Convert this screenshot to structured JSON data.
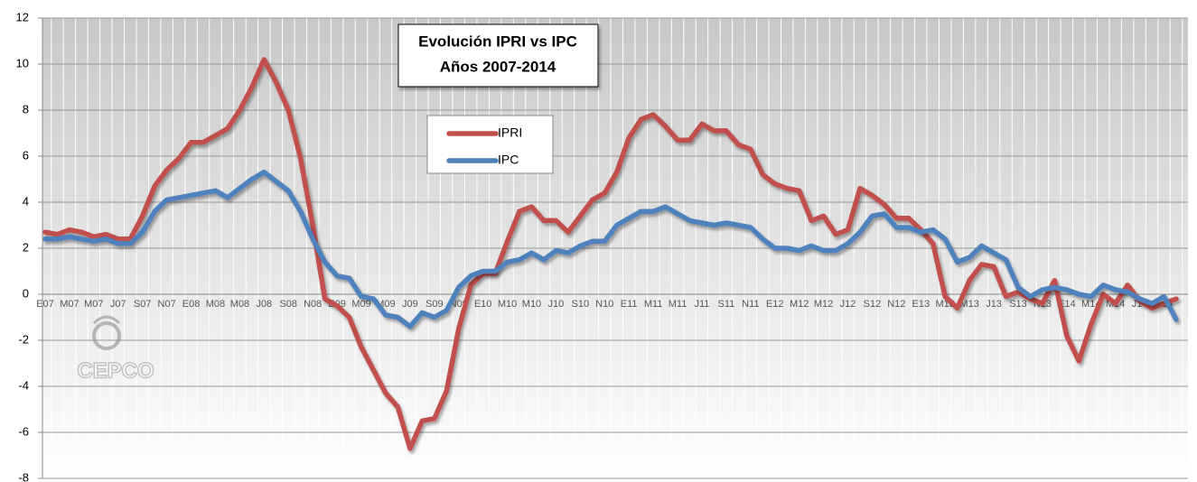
{
  "chart_data": {
    "type": "line",
    "title": "Evolución IPRI vs IPC",
    "subtitle": "Años 2007-2014",
    "watermark": "CEPCO",
    "categories": [
      "E07",
      null,
      "M07",
      null,
      "M07",
      null,
      "J07",
      null,
      "S07",
      null,
      "N07",
      null,
      "E08",
      null,
      "M08",
      null,
      "M08",
      null,
      "J08",
      null,
      "S08",
      null,
      "N08",
      null,
      "E09",
      null,
      "M09",
      null,
      "M09",
      null,
      "J09",
      null,
      "S09",
      null,
      "N09",
      null,
      "E10",
      null,
      "M10",
      null,
      "M10",
      null,
      "J10",
      null,
      "S10",
      null,
      "N10",
      null,
      "E11",
      null,
      "M11",
      null,
      "M11",
      null,
      "J11",
      null,
      "S11",
      null,
      "N11",
      null,
      "E12",
      null,
      "M12",
      null,
      "M12",
      null,
      "J12",
      null,
      "S12",
      null,
      "N12",
      null,
      "E13",
      null,
      "M13",
      null,
      "M13",
      null,
      "J13",
      null,
      "S13",
      null,
      "N13",
      null,
      "E14",
      null,
      "M14",
      null,
      "M14",
      null,
      "J14",
      null,
      "S14",
      null
    ],
    "series": [
      {
        "name": "IPRI",
        "color": "#c0504d",
        "values": [
          2.7,
          2.6,
          2.8,
          2.7,
          2.5,
          2.6,
          2.4,
          2.4,
          3.4,
          4.7,
          5.4,
          5.9,
          6.6,
          6.6,
          6.9,
          7.2,
          8.0,
          9.0,
          10.2,
          9.2,
          8.0,
          5.9,
          3.0,
          -0.2,
          -0.5,
          -1.0,
          -2.3,
          -3.3,
          -4.3,
          -4.9,
          -6.7,
          -5.5,
          -5.4,
          -4.2,
          -1.5,
          0.4,
          0.9,
          0.9,
          2.3,
          3.6,
          3.8,
          3.2,
          3.2,
          2.7,
          3.4,
          4.1,
          4.4,
          5.3,
          6.8,
          7.6,
          7.8,
          7.3,
          6.7,
          6.7,
          7.4,
          7.1,
          7.1,
          6.5,
          6.3,
          5.2,
          4.8,
          4.6,
          4.5,
          3.2,
          3.4,
          2.6,
          2.8,
          4.6,
          4.3,
          3.9,
          3.3,
          3.3,
          2.8,
          2.2,
          -0.1,
          -0.6,
          0.6,
          1.3,
          1.2,
          -0.1,
          0.1,
          -0.2,
          -0.4,
          0.6,
          -1.8,
          -2.9,
          -1.3,
          0.0,
          -0.4,
          0.4,
          -0.3,
          -0.6,
          -0.4,
          -0.2
        ]
      },
      {
        "name": "IPC",
        "color": "#4f81bd",
        "values": [
          2.4,
          2.4,
          2.5,
          2.4,
          2.3,
          2.4,
          2.2,
          2.2,
          2.7,
          3.6,
          4.1,
          4.2,
          4.3,
          4.4,
          4.5,
          4.2,
          4.6,
          5.0,
          5.3,
          4.9,
          4.5,
          3.6,
          2.4,
          1.4,
          0.8,
          0.7,
          -0.1,
          -0.2,
          -0.9,
          -1.0,
          -1.4,
          -0.8,
          -1.0,
          -0.7,
          0.3,
          0.8,
          1.0,
          1.0,
          1.4,
          1.5,
          1.8,
          1.5,
          1.9,
          1.8,
          2.1,
          2.3,
          2.3,
          3.0,
          3.3,
          3.6,
          3.6,
          3.8,
          3.5,
          3.2,
          3.1,
          3.0,
          3.1,
          3.0,
          2.9,
          2.4,
          2.0,
          2.0,
          1.9,
          2.1,
          1.9,
          1.9,
          2.2,
          2.7,
          3.4,
          3.5,
          2.9,
          2.9,
          2.7,
          2.8,
          2.4,
          1.4,
          1.6,
          2.1,
          1.8,
          1.5,
          0.3,
          -0.1,
          0.2,
          0.3,
          0.2,
          0.0,
          -0.1,
          0.4,
          0.2,
          0.1,
          -0.2,
          -0.4,
          -0.1,
          -1.1
        ]
      }
    ],
    "ylim": [
      -8,
      12
    ],
    "yticks": [
      -8,
      -6,
      -4,
      -2,
      0,
      2,
      4,
      6,
      8,
      10,
      12
    ],
    "grid": true
  }
}
